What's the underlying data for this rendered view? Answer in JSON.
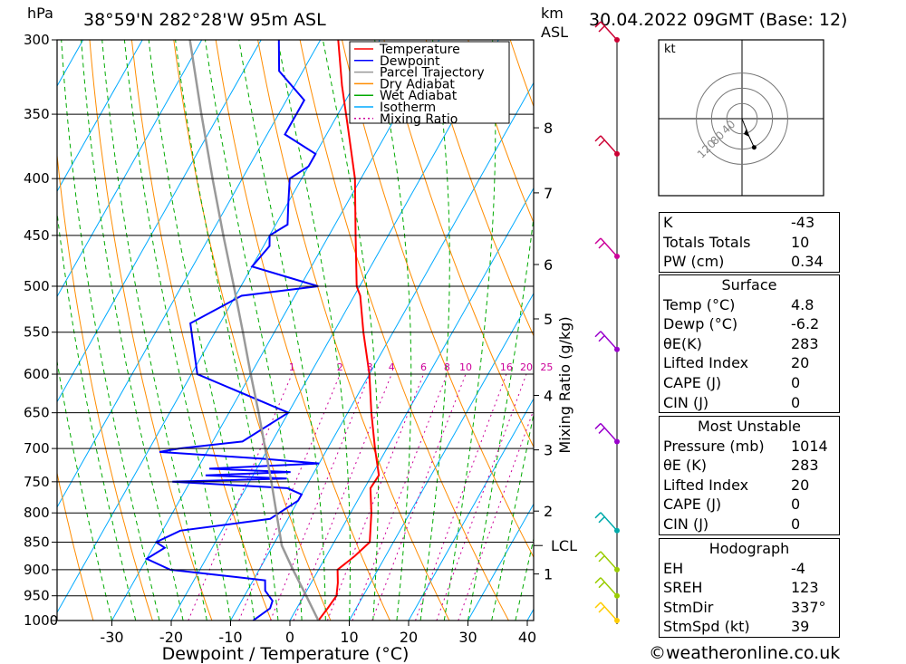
{
  "header": {
    "location": "38°59'N 282°28'W 95m ASL",
    "datetime": "30.04.2022 09GMT (Base: 12)",
    "hpa_unit": "hPa",
    "km_unit": "km",
    "asl_unit": "ASL"
  },
  "credit": "©weatheronline.co.uk",
  "hodograph_unit": "kt",
  "colors": {
    "temperature": "#ff0000",
    "dewpoint": "#0000ff",
    "parcel": "#999999",
    "dry_adiabat": "#ff8c00",
    "wet_adiabat": "#00aa00",
    "isotherm": "#00aaff",
    "mixing_ratio": "#cc0099"
  },
  "chart_data": {
    "type": "line",
    "subtype": "skew-T log-P sounding",
    "xlabel": "Dewpoint / Temperature (°C)",
    "ylabel": "hPa",
    "y_scale": "log",
    "xlim": [
      -40,
      40
    ],
    "ylim": [
      1000,
      300
    ],
    "x_ticks": [
      "-30",
      "-20",
      "-10",
      "0",
      "10",
      "20",
      "30",
      "40"
    ],
    "pressure_levels": [
      "300",
      "350",
      "400",
      "450",
      "500",
      "550",
      "600",
      "650",
      "700",
      "750",
      "800",
      "850",
      "900",
      "950",
      "1000"
    ],
    "height_labels": [
      {
        "km": "8",
        "p": 360
      },
      {
        "km": "7",
        "p": 412
      },
      {
        "km": "6",
        "p": 478
      },
      {
        "km": "5",
        "p": 535
      },
      {
        "km": "4",
        "p": 627
      },
      {
        "km": "3",
        "p": 702
      },
      {
        "km": "2",
        "p": 797
      },
      {
        "km": "1",
        "p": 908
      }
    ],
    "lcl_label": "LCL",
    "lcl_p": 856,
    "mixing_ratio_label": "Mixing Ratio (g/kg)",
    "mixing_ratio_values": [
      "1",
      "2",
      "3",
      "4",
      "6",
      "8",
      "10",
      "16",
      "20",
      "25"
    ],
    "legend": [
      "Temperature",
      "Dewpoint",
      "Parcel Trajectory",
      "Dry Adiabat",
      "Wet Adiabat",
      "Isotherm",
      "Mixing Ratio"
    ],
    "legend_position": "top-center",
    "series": [
      {
        "name": "Temperature",
        "points": [
          [
            1000,
            4.8
          ],
          [
            975,
            5.2
          ],
          [
            950,
            5.5
          ],
          [
            925,
            4.5
          ],
          [
            900,
            3.2
          ],
          [
            875,
            4.8
          ],
          [
            850,
            6.0
          ],
          [
            800,
            3.5
          ],
          [
            760,
            1.0
          ],
          [
            740,
            1.2
          ],
          [
            700,
            -2.0
          ],
          [
            650,
            -6.0
          ],
          [
            600,
            -10.0
          ],
          [
            550,
            -15.0
          ],
          [
            510,
            -19.0
          ],
          [
            500,
            -20.5
          ],
          [
            450,
            -25.5
          ],
          [
            400,
            -31.0
          ],
          [
            360,
            -37.0
          ],
          [
            330,
            -42.0
          ],
          [
            300,
            -47.0
          ]
        ]
      },
      {
        "name": "Dewpoint",
        "points": [
          [
            1000,
            -6.2
          ],
          [
            975,
            -4.5
          ],
          [
            960,
            -4.8
          ],
          [
            940,
            -7.0
          ],
          [
            920,
            -8.0
          ],
          [
            900,
            -25.0
          ],
          [
            880,
            -30.0
          ],
          [
            860,
            -28.0
          ],
          [
            850,
            -30.0
          ],
          [
            830,
            -27.0
          ],
          [
            810,
            -13.0
          ],
          [
            780,
            -10.0
          ],
          [
            770,
            -10.0
          ],
          [
            760,
            -13.0
          ],
          [
            750,
            -33.0
          ],
          [
            745,
            -14.0
          ],
          [
            740,
            -28.0
          ],
          [
            735,
            -14.0
          ],
          [
            730,
            -28.0
          ],
          [
            722,
            -10.0
          ],
          [
            715,
            -20.0
          ],
          [
            705,
            -38.0
          ],
          [
            700,
            -35.0
          ],
          [
            690,
            -25.0
          ],
          [
            650,
            -20.0
          ],
          [
            600,
            -39.0
          ],
          [
            540,
            -45.0
          ],
          [
            510,
            -39.0
          ],
          [
            500,
            -27.0
          ],
          [
            480,
            -40.0
          ],
          [
            460,
            -39.0
          ],
          [
            450,
            -40.0
          ],
          [
            440,
            -38.0
          ],
          [
            420,
            -40.0
          ],
          [
            400,
            -42.0
          ],
          [
            390,
            -40.0
          ],
          [
            380,
            -40.0
          ],
          [
            365,
            -47.0
          ],
          [
            350,
            -47.0
          ],
          [
            340,
            -47.0
          ],
          [
            320,
            -54.0
          ],
          [
            300,
            -57.0
          ]
        ]
      },
      {
        "name": "Parcel Trajectory",
        "points": [
          [
            1000,
            4.8
          ],
          [
            950,
            0.4
          ],
          [
            900,
            -4.3
          ],
          [
            856,
            -8.5
          ],
          [
            800,
            -12.5
          ],
          [
            750,
            -16.3
          ],
          [
            700,
            -20.5
          ],
          [
            650,
            -25.0
          ],
          [
            600,
            -30.0
          ],
          [
            550,
            -35.3
          ],
          [
            500,
            -41.2
          ],
          [
            450,
            -47.8
          ],
          [
            400,
            -55.0
          ],
          [
            350,
            -63.0
          ],
          [
            300,
            -72.0
          ]
        ]
      }
    ],
    "wind_barbs": [
      {
        "p": 300,
        "color": "#cc0033"
      },
      {
        "p": 380,
        "color": "#cc0033"
      },
      {
        "p": 470,
        "color": "#cc0099"
      },
      {
        "p": 570,
        "color": "#9900cc"
      },
      {
        "p": 690,
        "color": "#9900cc"
      },
      {
        "p": 830,
        "color": "#00aaaa"
      },
      {
        "p": 900,
        "color": "#99cc00"
      },
      {
        "p": 950,
        "color": "#99cc00"
      },
      {
        "p": 1000,
        "color": "#ffcc00"
      }
    ],
    "hodograph": {
      "rings_kt": [
        "40",
        "80",
        "120"
      ],
      "storm_motion": {
        "dir_deg": 337,
        "speed_kt": 39
      }
    }
  },
  "indices": {
    "k": {
      "label": "K",
      "value": "-43"
    },
    "totals": {
      "label": "Totals Totals",
      "value": "10"
    },
    "pw": {
      "label": "PW (cm)",
      "value": "0.34"
    }
  },
  "surface": {
    "title": "Surface",
    "temp": {
      "label": "Temp (°C)",
      "value": "4.8"
    },
    "dewp": {
      "label": "Dewp (°C)",
      "value": "-6.2"
    },
    "theta_e": {
      "label": "θE(K)",
      "value": "283"
    },
    "lifted_index": {
      "label": "Lifted Index",
      "value": "20"
    },
    "cape": {
      "label": "CAPE (J)",
      "value": "0"
    },
    "cin": {
      "label": "CIN (J)",
      "value": "0"
    }
  },
  "most_unstable": {
    "title": "Most Unstable",
    "pressure": {
      "label": "Pressure (mb)",
      "value": "1014"
    },
    "theta_e": {
      "label": "θE (K)",
      "value": "283"
    },
    "lifted_index": {
      "label": "Lifted Index",
      "value": "20"
    },
    "cape": {
      "label": "CAPE (J)",
      "value": "0"
    },
    "cin": {
      "label": "CIN (J)",
      "value": "0"
    }
  },
  "hodograph_table": {
    "title": "Hodograph",
    "eh": {
      "label": "EH",
      "value": "-4"
    },
    "sreh": {
      "label": "SREH",
      "value": "123"
    },
    "stmdir": {
      "label": "StmDir",
      "value": "337°"
    },
    "stmspd": {
      "label": "StmSpd (kt)",
      "value": "39"
    }
  }
}
